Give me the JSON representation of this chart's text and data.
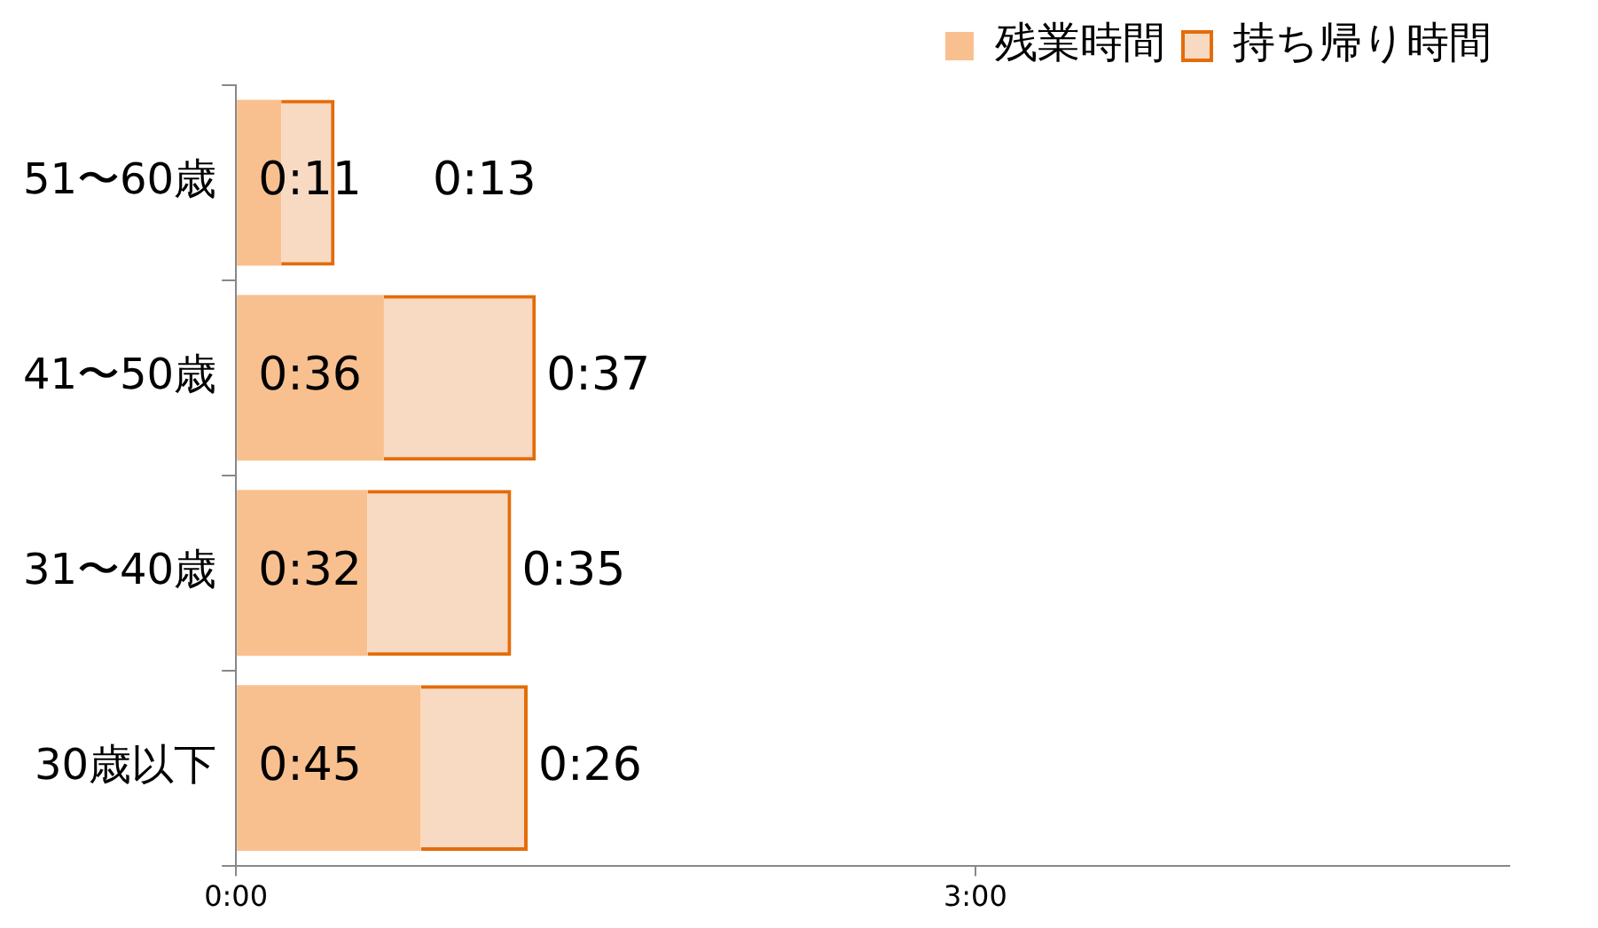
{
  "chart_data": {
    "type": "bar",
    "orientation": "horizontal",
    "stacked": true,
    "categories": [
      "51〜60歳",
      "41〜50歳",
      "31〜40歳",
      "30歳以下"
    ],
    "series": [
      {
        "name": "残業時間",
        "color": "#f9c08f",
        "values": [
          11,
          36,
          32,
          45
        ],
        "value_labels": [
          "0:11",
          "0:36",
          "0:32",
          "0:45"
        ]
      },
      {
        "name": "持ち帰り時間",
        "color": "#e36c0a",
        "values": [
          13,
          37,
          35,
          26
        ],
        "value_labels": [
          "0:13",
          "0:37",
          "0:35",
          "0:26"
        ]
      }
    ],
    "xlim": [
      0,
      310
    ],
    "xticks": [
      {
        "value": 0,
        "label": "0:00"
      },
      {
        "value": 180,
        "label": "3:00"
      }
    ],
    "grid": false,
    "legend": "top right"
  }
}
